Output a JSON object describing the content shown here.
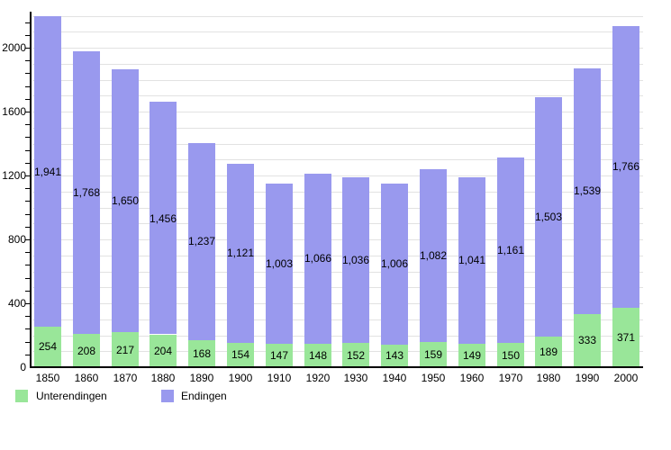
{
  "chart_data": {
    "type": "bar",
    "stacked": true,
    "title": "",
    "xlabel": "",
    "ylabel": "",
    "categories": [
      "1850",
      "1860",
      "1870",
      "1880",
      "1890",
      "1900",
      "1910",
      "1920",
      "1930",
      "1940",
      "1950",
      "1960",
      "1970",
      "1980",
      "1990",
      "2000"
    ],
    "series": [
      {
        "name": "Unterendingen",
        "color": "#99e699",
        "values": [
          254,
          208,
          217,
          204,
          168,
          154,
          147,
          148,
          152,
          143,
          159,
          149,
          150,
          189,
          333,
          371
        ]
      },
      {
        "name": "Endingen",
        "color": "#9999ee",
        "values": [
          1941,
          1768,
          1650,
          1456,
          1237,
          1121,
          1003,
          1066,
          1036,
          1006,
          1082,
          1041,
          1161,
          1503,
          1539,
          1766
        ]
      }
    ],
    "value_label_format": "thousands-comma",
    "ylim": [
      0,
      2250
    ],
    "y_ticks": [
      0,
      400,
      800,
      1200,
      1600,
      2000
    ],
    "gridline_step": 100,
    "minor_tick_step": 80,
    "grid": true,
    "legend_position": "bottom-left",
    "colors": {
      "axis": "#000000",
      "gridline": "#e2e2e2",
      "text": "#000000",
      "background": "#ffffff"
    }
  }
}
